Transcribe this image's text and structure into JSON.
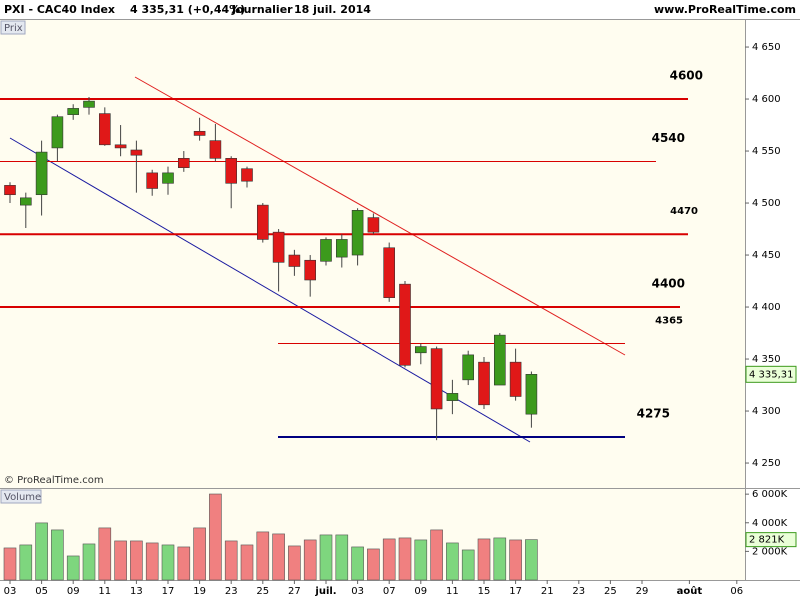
{
  "chart_data": {
    "type": "candlestick",
    "title": "PXI - CAC40 Index",
    "last_quote": "4 335,31 (+0,44%)",
    "period": "Journalier",
    "date": "18 juil. 2014",
    "source": "www.ProRealTime.com",
    "pane_label": "Prix",
    "copyright": "© ProRealTime.com",
    "up_color": "#3c9a1c",
    "down_color": "#e01818",
    "categories": [
      "03",
      null,
      "05",
      null,
      "09",
      null,
      "11",
      null,
      "13",
      null,
      "17",
      null,
      "19",
      null,
      "23",
      null,
      "25",
      null,
      "27",
      null,
      "juil.",
      null,
      "03",
      null,
      "07",
      null,
      "09",
      null,
      "11",
      null,
      "15",
      null,
      "17",
      null,
      "21",
      null,
      "23",
      null,
      "25",
      null,
      "29",
      null,
      null,
      "août",
      null,
      null,
      "06"
    ],
    "open": [
      4517,
      4498,
      4508,
      4553,
      4585,
      4592,
      4586,
      4556,
      4551,
      4529,
      4519,
      4543,
      4569,
      4560,
      4543,
      4533,
      4498,
      4472,
      4450,
      4445,
      4444,
      4448,
      4450,
      4486,
      4457,
      4422,
      4356,
      4360,
      4310,
      4330,
      4347,
      4325,
      4347,
      4297,
      null,
      null,
      null,
      null,
      null,
      null,
      null,
      null,
      null,
      null,
      null,
      null,
      null
    ],
    "high": [
      4520,
      4510,
      4560,
      4585,
      4595,
      4602,
      4592,
      4575,
      4560,
      4532,
      4535,
      4550,
      4582,
      4576,
      4545,
      4535,
      4500,
      4475,
      4455,
      4450,
      4467,
      4470,
      4495,
      4490,
      4462,
      4425,
      4365,
      4362,
      4330,
      4358,
      4352,
      4375,
      4360,
      4338,
      null,
      null,
      null,
      null,
      null,
      null,
      null,
      null,
      null,
      null,
      null,
      null,
      null
    ],
    "low": [
      4500,
      4476,
      4488,
      4540,
      4580,
      4585,
      4555,
      4545,
      4510,
      4507,
      4508,
      4530,
      4560,
      4540,
      4495,
      4515,
      4462,
      4415,
      4430,
      4410,
      4440,
      4438,
      4440,
      4470,
      4405,
      4342,
      4345,
      4272,
      4297,
      4325,
      4302,
      4325,
      4310,
      4284,
      null,
      null,
      null,
      null,
      null,
      null,
      null,
      null,
      null,
      null,
      null,
      null,
      null
    ],
    "close": [
      4508,
      4505,
      4549,
      4583,
      4591,
      4598,
      4556,
      4553,
      4546,
      4514,
      4529,
      4534,
      4565,
      4543,
      4519,
      4521,
      4465,
      4443,
      4439,
      4426,
      4465,
      4465,
      4493,
      4472,
      4409,
      4344,
      4362,
      4302,
      4317,
      4354,
      4306,
      4373,
      4314,
      4335.31,
      null,
      null,
      null,
      null,
      null,
      null,
      null,
      null,
      null,
      null,
      null,
      null,
      null
    ],
    "ylim": [
      4226,
      4676
    ],
    "yticks": [
      {
        "value": 4250,
        "label": "4 250"
      },
      {
        "value": 4300,
        "label": "4 300"
      },
      {
        "value": 4350,
        "label": "4 350"
      },
      {
        "value": 4400,
        "label": "4 400"
      },
      {
        "value": 4450,
        "label": "4 450"
      },
      {
        "value": 4500,
        "label": "4 500"
      },
      {
        "value": 4550,
        "label": "4 550"
      },
      {
        "value": 4600,
        "label": "4 600"
      },
      {
        "value": 4650,
        "label": "4 650"
      }
    ],
    "last_label": "4 335,31",
    "levels": [
      {
        "value": 4600,
        "color": "#d80000"
      },
      {
        "value": 4540,
        "color": "#d80000"
      },
      {
        "value": 4470,
        "color": "#d80000"
      },
      {
        "value": 4400,
        "color": "#d80000"
      },
      {
        "value": 4365,
        "color": "#d80000"
      },
      {
        "value": 4275,
        "color": "#000080"
      }
    ],
    "volume": {
      "name": "Volume",
      "up_color": "#7ed67e",
      "down_color": "#f08080",
      "values": [
        2240,
        2450,
        3990,
        3500,
        1680,
        2520,
        3640,
        2730,
        2730,
        2590,
        2450,
        2310,
        3640,
        6010,
        2730,
        2450,
        3360,
        3220,
        2380,
        2800,
        3150,
        3150,
        2310,
        2170,
        2870,
        2940,
        2800,
        3500,
        2590,
        2100,
        2870,
        2940,
        2800,
        2821,
        null,
        null,
        null,
        null,
        null,
        null,
        null,
        null,
        null,
        null,
        null,
        null,
        null
      ],
      "ylim": [
        0,
        6360
      ],
      "yticks": [
        {
          "value": 2000,
          "label": "2 000K"
        },
        {
          "value": 4000,
          "label": "4 000K"
        },
        {
          "value": 6000,
          "label": "6 000K"
        }
      ],
      "last_label": "2 821K"
    }
  }
}
